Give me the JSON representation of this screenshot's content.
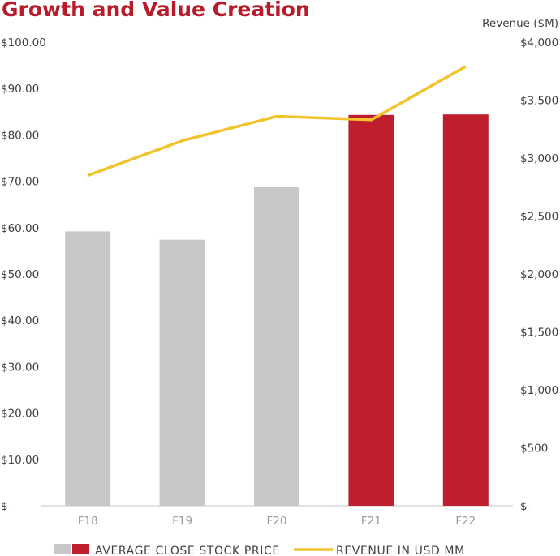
{
  "chart_data": {
    "type": "bar+line",
    "title": "Growth and Value Creation",
    "categories": [
      "F18",
      "F19",
      "F20",
      "F21",
      "F22"
    ],
    "left_axis": {
      "ticks": [
        "$100.00",
        "$90.00",
        "$80.00",
        "$70.00",
        "$60.00",
        "$50.00",
        "$40.00",
        "$30.00",
        "$20.00",
        "$10.00",
        "$-"
      ],
      "range": [
        0,
        100
      ]
    },
    "right_axis": {
      "title": "Revenue ($M)",
      "ticks": [
        "$4,000",
        "$3,500",
        "$3,000",
        "$2,500",
        "$2,000",
        "$1,500",
        "$1,000",
        "$500",
        "$-"
      ],
      "range": [
        0,
        4000
      ]
    },
    "series": [
      {
        "name": "AVERAGE CLOSE STOCK PRICE",
        "type": "bar",
        "axis": "left",
        "values": [
          59.2,
          57.4,
          68.7,
          84.3,
          84.4
        ],
        "colors": [
          "#c8c8c8",
          "#c8c8c8",
          "#c8c8c8",
          "#be1e2d",
          "#be1e2d"
        ]
      },
      {
        "name": "REVENUE IN USD MM",
        "type": "line",
        "axis": "right",
        "values": [
          2850,
          3150,
          3360,
          3330,
          3790
        ],
        "color": "#f2c42c"
      }
    ],
    "legend": "bottom"
  }
}
